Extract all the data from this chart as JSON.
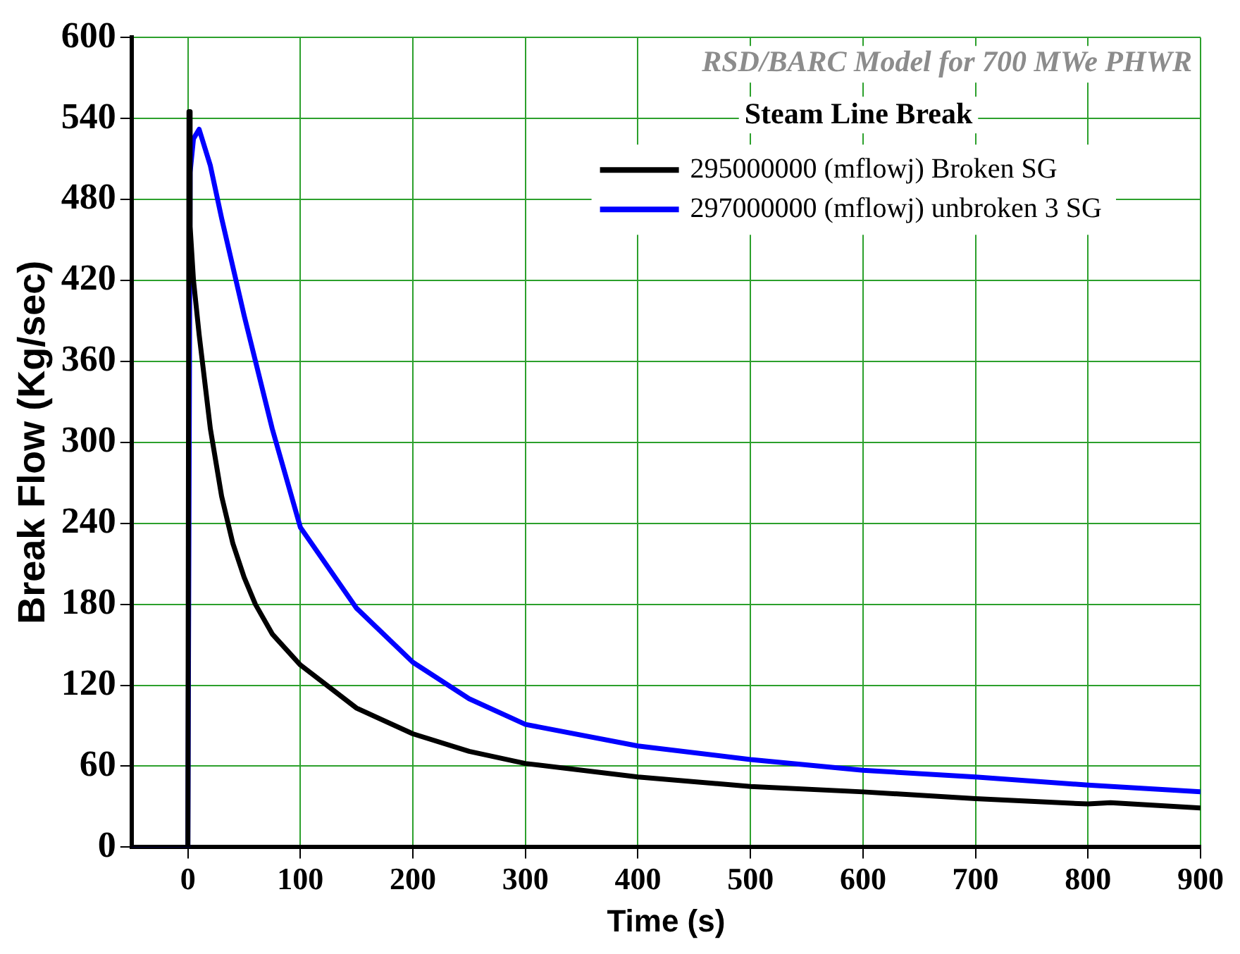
{
  "chart_data": {
    "type": "line",
    "title": "Steam Line Break",
    "xlabel": "Time (s)",
    "ylabel": "Break Flow (Kg/sec)",
    "annotations": [
      "RSD/BARC Model for 700 MWe PHWR"
    ],
    "xlim": [
      -50,
      900
    ],
    "xticks": [
      0,
      100,
      200,
      300,
      400,
      500,
      600,
      700,
      800,
      900
    ],
    "ylim": [
      0,
      600
    ],
    "yticks": [
      0,
      60,
      120,
      180,
      240,
      300,
      360,
      420,
      480,
      540,
      600
    ],
    "grid": true,
    "legend": "top right",
    "marker": "none",
    "line_style": "solid",
    "series": [
      {
        "name": "295000000 (mflowj) Broken SG",
        "color": "#000000",
        "x": [
          -50,
          0,
          1,
          2,
          5,
          10,
          20,
          30,
          40,
          50,
          60,
          75,
          100,
          150,
          200,
          250,
          300,
          400,
          500,
          600,
          700,
          800,
          820,
          900
        ],
        "values": [
          0,
          0,
          545,
          460,
          420,
          380,
          310,
          260,
          225,
          200,
          180,
          158,
          135,
          103,
          84,
          71,
          62,
          52,
          45,
          41,
          36,
          32,
          33,
          29
        ]
      },
      {
        "name": "297000000 (mflowj) unbroken 3 SG",
        "color": "#0000ff",
        "x": [
          -50,
          0,
          2,
          5,
          10,
          20,
          30,
          40,
          50,
          75,
          100,
          150,
          200,
          250,
          300,
          400,
          500,
          600,
          700,
          800,
          900
        ],
        "values": [
          0,
          0,
          500,
          525,
          532,
          505,
          466,
          430,
          394,
          310,
          237,
          177,
          137,
          110,
          91,
          75,
          65,
          57,
          52,
          46,
          41
        ]
      }
    ]
  }
}
